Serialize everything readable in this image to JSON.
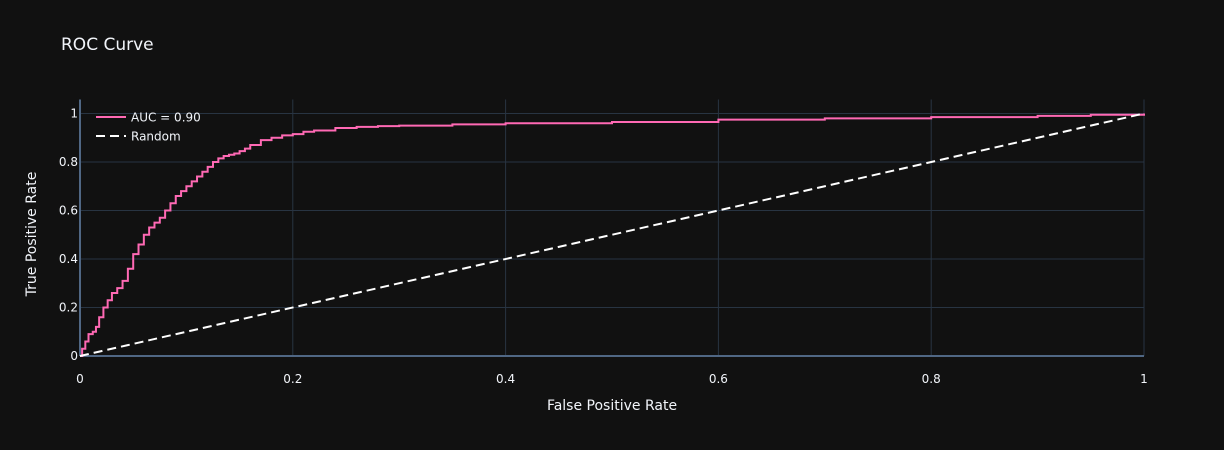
{
  "colors": {
    "background": "#111111",
    "grid": "#283442",
    "zeroline": "#506784",
    "text": "#f2f5fa",
    "roc_line": "#ff69b4",
    "random_line": "#ffffff"
  },
  "chart_data": {
    "type": "line",
    "title": "ROC Curve",
    "xlabel": "False Positive Rate",
    "ylabel": "True Positive Rate",
    "xlim": [
      0,
      1
    ],
    "ylim": [
      0,
      1
    ],
    "xticks": [
      0,
      0.2,
      0.4,
      0.6,
      0.8,
      1
    ],
    "xtick_labels": [
      "0",
      "0.2",
      "0.4",
      "0.6",
      "0.8",
      "1"
    ],
    "yticks": [
      0,
      0.2,
      0.4,
      0.6,
      0.8,
      1
    ],
    "ytick_labels": [
      "0",
      "0.2",
      "0.4",
      "0.6",
      "0.8",
      "1"
    ],
    "grid": true,
    "legend_position": "top-left",
    "series": [
      {
        "name": "AUC = 0.90",
        "style": "solid",
        "color": "#ff69b4",
        "x": [
          0,
          0.002,
          0.005,
          0.008,
          0.012,
          0.015,
          0.018,
          0.022,
          0.026,
          0.03,
          0.035,
          0.04,
          0.045,
          0.05,
          0.055,
          0.06,
          0.065,
          0.07,
          0.075,
          0.08,
          0.085,
          0.09,
          0.095,
          0.1,
          0.105,
          0.11,
          0.115,
          0.12,
          0.125,
          0.13,
          0.135,
          0.14,
          0.145,
          0.15,
          0.155,
          0.16,
          0.17,
          0.18,
          0.19,
          0.2,
          0.21,
          0.22,
          0.24,
          0.26,
          0.28,
          0.3,
          0.35,
          0.4,
          0.5,
          0.6,
          0.7,
          0.8,
          0.9,
          0.95,
          1.0
        ],
        "y": [
          0,
          0.03,
          0.06,
          0.09,
          0.1,
          0.12,
          0.16,
          0.2,
          0.23,
          0.26,
          0.28,
          0.31,
          0.36,
          0.42,
          0.46,
          0.5,
          0.53,
          0.55,
          0.57,
          0.6,
          0.63,
          0.66,
          0.68,
          0.7,
          0.72,
          0.74,
          0.76,
          0.78,
          0.8,
          0.815,
          0.825,
          0.83,
          0.835,
          0.845,
          0.855,
          0.87,
          0.89,
          0.9,
          0.91,
          0.915,
          0.925,
          0.93,
          0.94,
          0.945,
          0.948,
          0.95,
          0.955,
          0.96,
          0.965,
          0.975,
          0.98,
          0.985,
          0.99,
          0.995,
          1.0
        ]
      },
      {
        "name": "Random",
        "style": "dash",
        "color": "#ffffff",
        "x": [
          0,
          1
        ],
        "y": [
          0,
          1
        ]
      }
    ]
  }
}
